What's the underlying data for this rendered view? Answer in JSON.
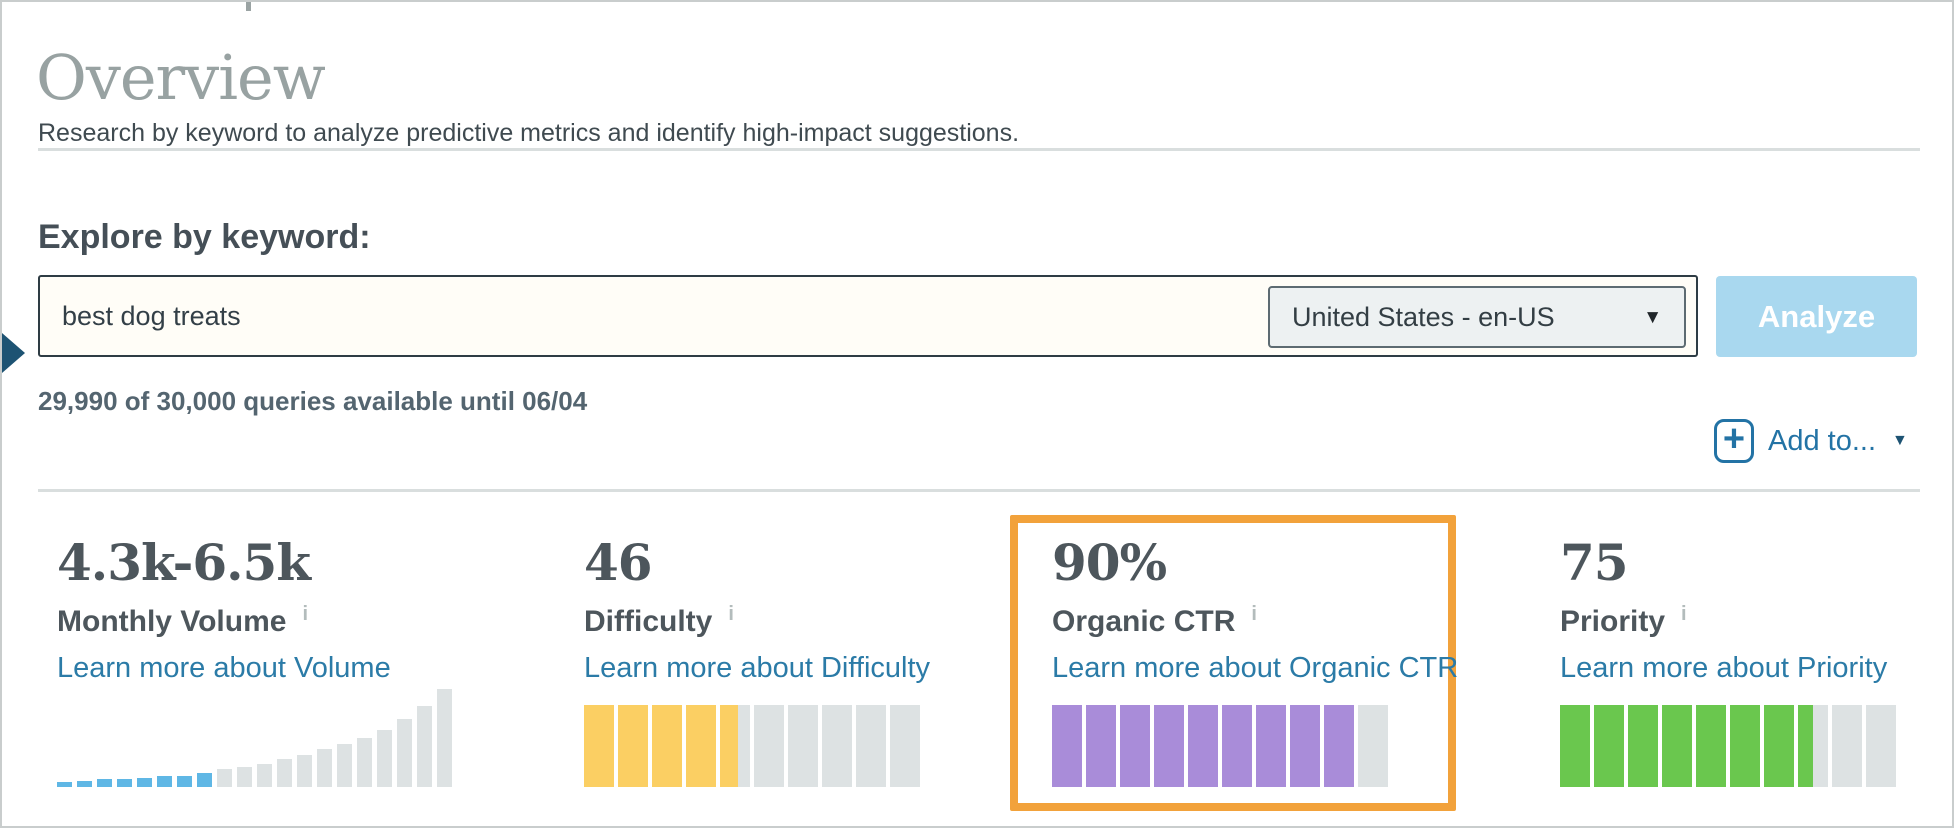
{
  "page": {
    "title": "Overview",
    "subtitle": "Research by keyword to analyze predictive metrics and identify high-impact suggestions."
  },
  "explore": {
    "heading": "Explore by keyword:",
    "keyword_value": "best dog treats",
    "locale_value": "United States - en-US",
    "select_caret": "▼",
    "analyze_label": "Analyze",
    "quota_text": "29,990 of 30,000 queries available until 06/04",
    "add_to_label": "Add to...",
    "plus_icon": "+",
    "add_to_caret": "▼"
  },
  "metrics": {
    "cards": [
      {
        "value": "4.3k-6.5k",
        "label": "Monthly Volume",
        "info_icon": "i",
        "link": "Learn more about Volume"
      },
      {
        "value": "46",
        "label": "Difficulty",
        "info_icon": "i",
        "link": "Learn more about Difficulty"
      },
      {
        "value": "90%",
        "label": "Organic CTR",
        "info_icon": "i",
        "link": "Learn more about Organic CTR",
        "highlighted": true
      },
      {
        "value": "75",
        "label": "Priority",
        "info_icon": "i",
        "link": "Learn more about Priority"
      }
    ]
  },
  "chart_data": [
    {
      "type": "bar",
      "title": "Monthly Volume distribution histogram",
      "unit": "px",
      "values": [
        5,
        6,
        8,
        8,
        9,
        11,
        11,
        14,
        18,
        20,
        23,
        28,
        32,
        38,
        43,
        49,
        57,
        68,
        81,
        98
      ],
      "highlight_count": 8,
      "highlight_color": "#5fb7e5",
      "bar_color": "#dde2e3",
      "grid": false,
      "legend": false
    },
    {
      "type": "segment-gauge",
      "metric": "Difficulty",
      "value": 46,
      "max": 100,
      "segments": 10,
      "fill_color": "#fbcf63",
      "empty_color": "#dde2e3"
    },
    {
      "type": "segment-gauge",
      "metric": "Organic CTR",
      "value": 90,
      "max": 100,
      "segments": 10,
      "fill_color": "#a98cd9",
      "empty_color": "#dde2e3"
    },
    {
      "type": "segment-gauge",
      "metric": "Priority",
      "value": 75,
      "max": 100,
      "segments": 10,
      "fill_color": "#6ac74e",
      "empty_color": "#dde2e3"
    }
  ],
  "colors": {
    "accent_blue": "#2373a5",
    "link_teal": "#2b7ba7",
    "analyze_bg": "#a9d8ef",
    "highlight_orange": "#f2a23b",
    "pointer_navy": "#1d5373",
    "title_gray": "#98a2a2",
    "metric_text": "#4d565c"
  }
}
